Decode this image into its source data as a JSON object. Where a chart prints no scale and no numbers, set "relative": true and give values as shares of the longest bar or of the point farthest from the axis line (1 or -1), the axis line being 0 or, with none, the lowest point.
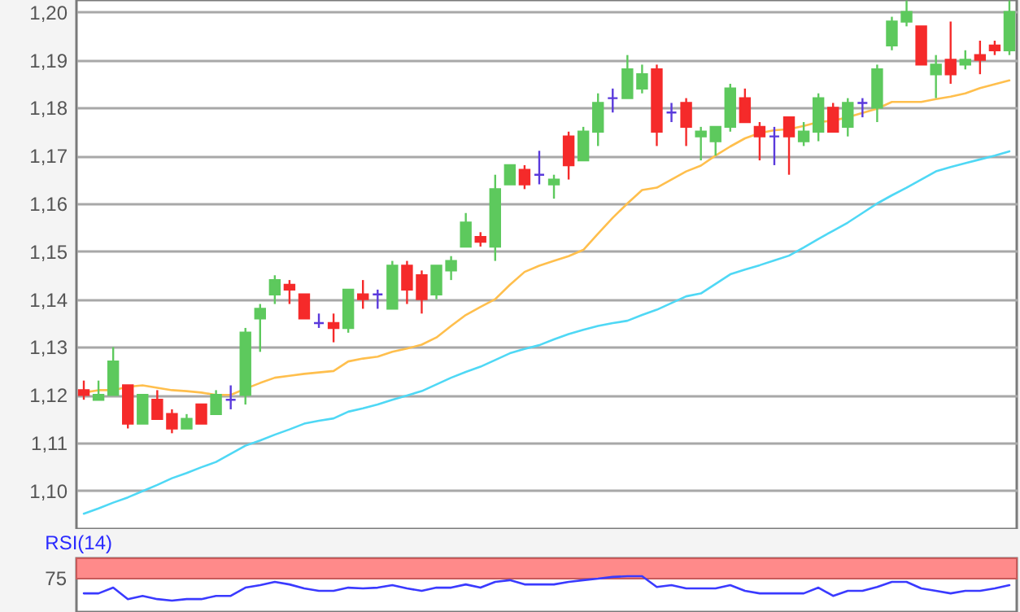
{
  "chart_data": [
    {
      "type": "candlestick",
      "categories": [
        null,
        null,
        null,
        null,
        null,
        null,
        null,
        null,
        null,
        null,
        null,
        null,
        null,
        null,
        null,
        null,
        null,
        null,
        null,
        null,
        null,
        null,
        null,
        null,
        null,
        null,
        null,
        null,
        null,
        null,
        null,
        null,
        null,
        null,
        null,
        null,
        null,
        null,
        null,
        null,
        null,
        null,
        null,
        null,
        null,
        null,
        null,
        null,
        null,
        null,
        null,
        null,
        null,
        null,
        null,
        null,
        null,
        null,
        null,
        null,
        null,
        null,
        null,
        null
      ],
      "ohlc": [
        [
          1.121,
          1.123,
          1.119,
          1.12
        ],
        [
          1.119,
          1.123,
          1.119,
          1.12
        ],
        [
          1.12,
          1.13,
          1.12,
          1.127
        ],
        [
          1.122,
          1.122,
          1.113,
          1.114
        ],
        [
          1.114,
          1.12,
          1.114,
          1.12
        ],
        [
          1.119,
          1.121,
          1.115,
          1.115
        ],
        [
          1.116,
          1.117,
          1.112,
          1.113
        ],
        [
          1.113,
          1.116,
          1.113,
          1.115
        ],
        [
          1.118,
          1.118,
          1.114,
          1.114
        ],
        [
          1.116,
          1.121,
          1.116,
          1.12
        ],
        [
          1.119,
          1.122,
          1.117,
          1.119
        ],
        [
          1.12,
          1.134,
          1.118,
          1.133
        ],
        [
          1.136,
          1.139,
          1.129,
          1.138
        ],
        [
          1.141,
          1.145,
          1.139,
          1.144
        ],
        [
          1.143,
          1.144,
          1.139,
          1.142
        ],
        [
          1.141,
          1.141,
          1.136,
          1.136
        ],
        [
          1.135,
          1.137,
          1.134,
          1.135
        ],
        [
          1.135,
          1.137,
          1.131,
          1.134
        ],
        [
          1.134,
          1.142,
          1.133,
          1.142
        ],
        [
          1.141,
          1.144,
          1.138,
          1.14
        ],
        [
          1.141,
          1.142,
          1.138,
          1.141
        ],
        [
          1.138,
          1.148,
          1.138,
          1.147
        ],
        [
          1.147,
          1.148,
          1.139,
          1.142
        ],
        [
          1.145,
          1.146,
          1.137,
          1.14
        ],
        [
          1.141,
          1.147,
          1.14,
          1.147
        ],
        [
          1.146,
          1.149,
          1.144,
          1.148
        ],
        [
          1.151,
          1.158,
          1.151,
          1.156
        ],
        [
          1.153,
          1.154,
          1.151,
          1.152
        ],
        [
          1.151,
          1.166,
          1.148,
          1.163
        ],
        [
          1.164,
          1.168,
          1.164,
          1.168
        ],
        [
          1.167,
          1.168,
          1.163,
          1.164
        ],
        [
          1.166,
          1.171,
          1.164,
          1.166
        ],
        [
          1.164,
          1.166,
          1.161,
          1.165
        ],
        [
          1.174,
          1.175,
          1.165,
          1.168
        ],
        [
          1.169,
          1.176,
          1.169,
          1.175
        ],
        [
          1.175,
          1.183,
          1.172,
          1.181
        ],
        [
          1.182,
          1.184,
          1.179,
          1.182
        ],
        [
          1.182,
          1.191,
          1.182,
          1.188
        ],
        [
          1.184,
          1.189,
          1.183,
          1.187
        ],
        [
          1.188,
          1.189,
          1.172,
          1.175
        ],
        [
          1.179,
          1.181,
          1.177,
          1.179
        ],
        [
          1.181,
          1.182,
          1.172,
          1.176
        ],
        [
          1.174,
          1.176,
          1.169,
          1.175
        ],
        [
          1.173,
          1.176,
          1.17,
          1.176
        ],
        [
          1.176,
          1.185,
          1.175,
          1.184
        ],
        [
          1.182,
          1.184,
          1.177,
          1.177
        ],
        [
          1.176,
          1.177,
          1.169,
          1.174
        ],
        [
          1.174,
          1.176,
          1.168,
          1.174
        ],
        [
          1.178,
          1.178,
          1.166,
          1.174
        ],
        [
          1.173,
          1.177,
          1.172,
          1.175
        ],
        [
          1.175,
          1.183,
          1.173,
          1.182
        ],
        [
          1.18,
          1.181,
          1.175,
          1.175
        ],
        [
          1.176,
          1.182,
          1.174,
          1.181
        ],
        [
          1.181,
          1.182,
          1.178,
          1.181
        ],
        [
          1.18,
          1.189,
          1.177,
          1.188
        ],
        [
          1.193,
          1.199,
          1.192,
          1.198
        ],
        [
          1.198,
          1.2024,
          1.197,
          1.2
        ],
        [
          1.197,
          1.197,
          1.189,
          1.189
        ],
        [
          1.187,
          1.191,
          1.182,
          1.189
        ],
        [
          1.19,
          1.198,
          1.185,
          1.187
        ],
        [
          1.189,
          1.192,
          1.188,
          1.19
        ],
        [
          1.191,
          1.194,
          1.187,
          1.19
        ],
        [
          1.193,
          1.194,
          1.191,
          1.192
        ],
        [
          1.192,
          1.2024,
          1.191,
          1.2
        ]
      ],
      "colors": [
        "#f52a2a",
        "#5dc95d",
        "#5dc95d",
        "#f52a2a",
        "#5dc95d",
        "#f52a2a",
        "#f52a2a",
        "#5dc95d",
        "#f52a2a",
        "#5dc95d",
        "#5a3adc",
        "#5dc95d",
        "#5dc95d",
        "#5dc95d",
        "#f52a2a",
        "#f52a2a",
        "#5a3adc",
        "#f52a2a",
        "#5dc95d",
        "#f52a2a",
        "#5a3adc",
        "#5dc95d",
        "#f52a2a",
        "#f52a2a",
        "#5dc95d",
        "#5dc95d",
        "#5dc95d",
        "#f52a2a",
        "#5dc95d",
        "#5dc95d",
        "#f52a2a",
        "#5a3adc",
        "#5dc95d",
        "#f52a2a",
        "#5dc95d",
        "#5dc95d",
        "#5a3adc",
        "#5dc95d",
        "#5dc95d",
        "#f52a2a",
        "#5a3adc",
        "#f52a2a",
        "#5dc95d",
        "#5dc95d",
        "#5dc95d",
        "#f52a2a",
        "#f52a2a",
        "#5a3adc",
        "#f52a2a",
        "#5dc95d",
        "#5dc95d",
        "#f52a2a",
        "#5dc95d",
        "#5a3adc",
        "#5dc95d",
        "#5dc95d",
        "#5dc95d",
        "#f52a2a",
        "#5dc95d",
        "#f52a2a",
        "#5dc95d",
        "#f52a2a",
        "#f52a2a",
        "#5dc95d"
      ],
      "series": [
        {
          "type": "line",
          "color": "#ffbf4d",
          "values": [
            1.1205,
            1.121,
            1.121,
            1.1217,
            1.122,
            1.1215,
            1.121,
            1.1208,
            1.1205,
            1.12,
            1.12,
            1.1213,
            1.1225,
            1.1236,
            1.124,
            1.1244,
            1.1247,
            1.125,
            1.127,
            1.1276,
            1.128,
            1.129,
            1.1297,
            1.1305,
            1.132,
            1.1344,
            1.1367,
            1.1384,
            1.14,
            1.143,
            1.1457,
            1.147,
            1.148,
            1.149,
            1.1503,
            1.1537,
            1.157,
            1.16,
            1.1628,
            1.1633,
            1.165,
            1.1667,
            1.1679,
            1.17,
            1.1719,
            1.1736,
            1.1747,
            1.1753,
            1.1755,
            1.1762,
            1.177,
            1.1773,
            1.178,
            1.1789,
            1.1798,
            1.1812,
            1.1812,
            1.1812,
            1.1818,
            1.1823,
            1.183,
            1.1841,
            1.1849,
            1.1857
          ]
        },
        {
          "type": "line",
          "color": "#4fd8f5",
          "values": [
            1.0952,
            1.0963,
            1.0975,
            1.0986,
            1.0999,
            1.1012,
            1.1026,
            1.1037,
            1.1049,
            1.106,
            1.1077,
            1.1094,
            1.1105,
            1.1117,
            1.1128,
            1.114,
            1.1146,
            1.1151,
            1.1165,
            1.1172,
            1.118,
            1.119,
            1.1199,
            1.1208,
            1.1222,
            1.1236,
            1.1248,
            1.1259,
            1.1273,
            1.1287,
            1.1296,
            1.1304,
            1.1316,
            1.1327,
            1.1336,
            1.1344,
            1.135,
            1.1355,
            1.1367,
            1.1378,
            1.1392,
            1.1406,
            1.1412,
            1.1432,
            1.1452,
            1.1462,
            1.1471,
            1.1481,
            1.1491,
            1.1508,
            1.1526,
            1.1543,
            1.156,
            1.158,
            1.16,
            1.1617,
            1.1633,
            1.165,
            1.1667,
            1.1676,
            1.1684,
            1.1692,
            1.17,
            1.1709
          ]
        }
      ],
      "ylim": [
        1.092,
        1.2025
      ],
      "yticks": [
        {
          "value": 1.1,
          "label": "1,10"
        },
        {
          "value": 1.11,
          "label": "1,11"
        },
        {
          "value": 1.12,
          "label": "1,12"
        },
        {
          "value": 1.13,
          "label": "1,13"
        },
        {
          "value": 1.14,
          "label": "1,14"
        },
        {
          "value": 1.15,
          "label": "1,15"
        },
        {
          "value": 1.16,
          "label": "1,16"
        },
        {
          "value": 1.17,
          "label": "1,17"
        },
        {
          "value": 1.18,
          "label": "1,18"
        },
        {
          "value": 1.19,
          "label": "1,19"
        },
        {
          "value": 1.2,
          "label": "1,20"
        }
      ],
      "grid": "y",
      "tick_labels": "y"
    },
    {
      "type": "line",
      "title": "RSI(14)",
      "categories": [
        null,
        null,
        null,
        null,
        null,
        null,
        null,
        null,
        null,
        null,
        null,
        null,
        null,
        null,
        null,
        null,
        null,
        null,
        null,
        null,
        null,
        null,
        null,
        null,
        null,
        null,
        null,
        null,
        null,
        null,
        null,
        null,
        null,
        null,
        null,
        null,
        null,
        null,
        null,
        null,
        null,
        null,
        null,
        null,
        null,
        null,
        null,
        null,
        null,
        null,
        null,
        null,
        null,
        null,
        null,
        null,
        null,
        null,
        null,
        null,
        null,
        null,
        null,
        null
      ],
      "series": [
        {
          "color": "#3a3aff",
          "values": [
            0.52,
            0.52,
            0.68,
            0.36,
            0.45,
            0.36,
            0.32,
            0.36,
            0.36,
            0.45,
            0.45,
            0.68,
            0.75,
            0.84,
            0.77,
            0.66,
            0.59,
            0.59,
            0.68,
            0.66,
            0.68,
            0.75,
            0.66,
            0.59,
            0.68,
            0.68,
            0.77,
            0.68,
            0.84,
            0.89,
            0.77,
            0.77,
            0.77,
            0.84,
            0.89,
            0.93,
            0.98,
            1,
            1,
            0.7,
            0.75,
            0.66,
            0.66,
            0.66,
            0.75,
            0.59,
            0.52,
            0.52,
            0.52,
            0.52,
            0.68,
            0.45,
            0.59,
            0.59,
            0.7,
            0.84,
            0.84,
            0.66,
            0.59,
            0.52,
            0.59,
            0.59,
            0.66,
            0.75
          ]
        }
      ],
      "relative": true,
      "bands": [
        {
          "axis": "y",
          "from": 0.93,
          "to": 1.5,
          "color": "#ff8a8a"
        }
      ],
      "annotations": [
        "75"
      ]
    }
  ]
}
